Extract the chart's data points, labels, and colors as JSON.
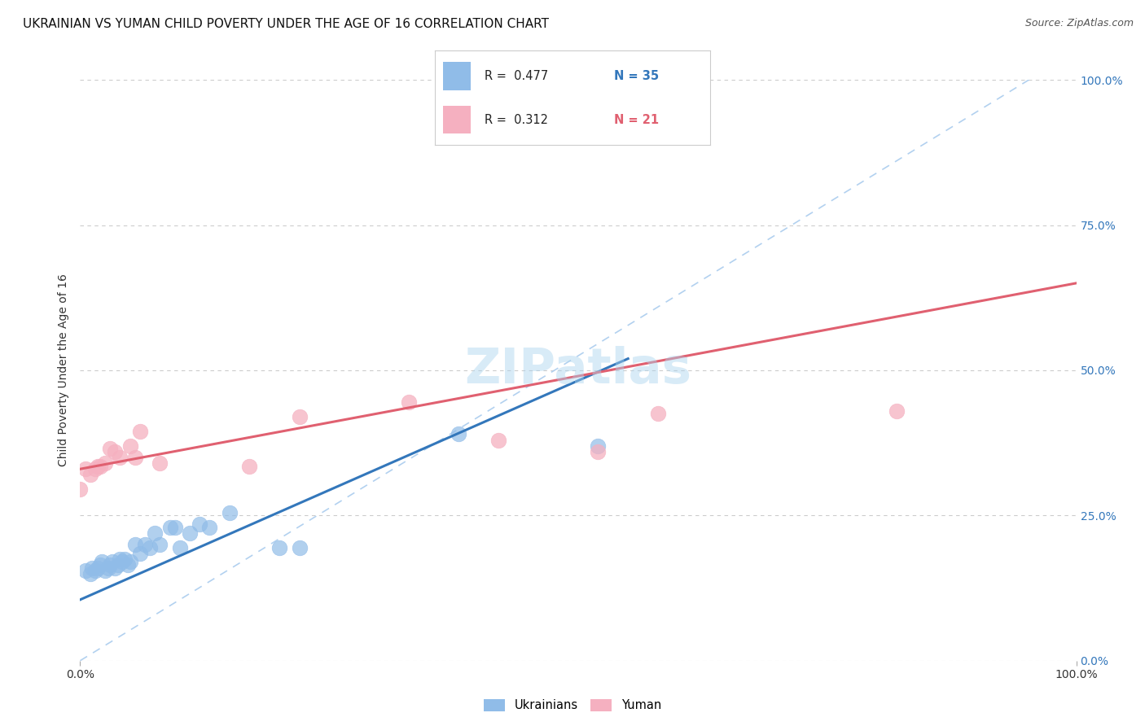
{
  "title": "UKRAINIAN VS YUMAN CHILD POVERTY UNDER THE AGE OF 16 CORRELATION CHART",
  "source": "Source: ZipAtlas.com",
  "ylabel": "Child Poverty Under the Age of 16",
  "xlim": [
    0,
    1
  ],
  "ylim": [
    0,
    1
  ],
  "xtick_labels": [
    "0.0%",
    "100.0%"
  ],
  "ytick_labels": [
    "0.0%",
    "25.0%",
    "50.0%",
    "75.0%",
    "100.0%"
  ],
  "ytick_positions": [
    0.0,
    0.25,
    0.5,
    0.75,
    1.0
  ],
  "background_color": "#ffffff",
  "watermark_text": "ZIPatlas",
  "legend_r1": "R =  0.477",
  "legend_n1": "N = 35",
  "legend_r2": "R =  0.312",
  "legend_n2": "N = 21",
  "blue_scatter_color": "#90bce8",
  "pink_scatter_color": "#f5b0c0",
  "blue_line_color": "#3377bb",
  "pink_line_color": "#e06070",
  "grid_color": "#cccccc",
  "diag_line_color": "#aaccee",
  "ukrainians_x": [
    0.005,
    0.01,
    0.012,
    0.015,
    0.018,
    0.02,
    0.022,
    0.025,
    0.028,
    0.03,
    0.032,
    0.035,
    0.038,
    0.04,
    0.042,
    0.045,
    0.048,
    0.05,
    0.055,
    0.06,
    0.065,
    0.07,
    0.075,
    0.08,
    0.09,
    0.095,
    0.1,
    0.11,
    0.12,
    0.13,
    0.15,
    0.2,
    0.22,
    0.38,
    0.52
  ],
  "ukrainians_y": [
    0.155,
    0.15,
    0.16,
    0.155,
    0.16,
    0.165,
    0.17,
    0.155,
    0.16,
    0.165,
    0.17,
    0.16,
    0.165,
    0.175,
    0.17,
    0.175,
    0.165,
    0.17,
    0.2,
    0.185,
    0.2,
    0.195,
    0.22,
    0.2,
    0.23,
    0.23,
    0.195,
    0.22,
    0.235,
    0.23,
    0.255,
    0.195,
    0.195,
    0.39,
    0.37
  ],
  "yuman_x": [
    0.0,
    0.005,
    0.01,
    0.015,
    0.018,
    0.02,
    0.025,
    0.03,
    0.035,
    0.04,
    0.05,
    0.055,
    0.06,
    0.08,
    0.17,
    0.22,
    0.33,
    0.42,
    0.52,
    0.58,
    0.82
  ],
  "yuman_y": [
    0.295,
    0.33,
    0.32,
    0.33,
    0.335,
    0.335,
    0.34,
    0.365,
    0.36,
    0.35,
    0.37,
    0.35,
    0.395,
    0.34,
    0.335,
    0.42,
    0.445,
    0.38,
    0.36,
    0.425,
    0.43
  ],
  "blue_line_x0": 0.0,
  "blue_line_y0": 0.105,
  "blue_line_x1": 0.55,
  "blue_line_y1": 0.52,
  "pink_line_x0": 0.0,
  "pink_line_y0": 0.33,
  "pink_line_x1": 1.0,
  "pink_line_y1": 0.65,
  "title_fontsize": 11,
  "axis_label_fontsize": 10,
  "tick_fontsize": 10
}
